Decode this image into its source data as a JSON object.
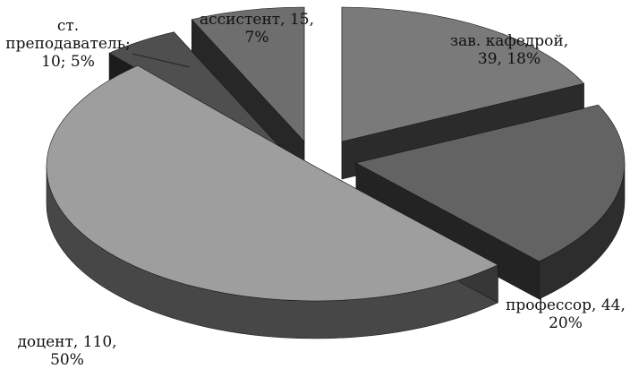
{
  "chart_data": {
    "type": "pie",
    "style": "3d-exploded",
    "slices": [
      {
        "label": "зав. кафедрой",
        "value": 39,
        "percent": "18%",
        "color": "#7a7a7a",
        "text_line1": "зав. кафедрой,",
        "text_line2": "39, 18%"
      },
      {
        "label": "профессор",
        "value": 44,
        "percent": "20%",
        "color": "#636363",
        "text_line1": "профессор, 44,",
        "text_line2": "20%"
      },
      {
        "label": "доцент",
        "value": 110,
        "percent": "50%",
        "color": "#9e9e9e",
        "text_line1": "доцент, 110,",
        "text_line2": "50%"
      },
      {
        "label": "ст. преподаватель",
        "value": 10,
        "percent": "5%",
        "color": "#4f4f4f",
        "text_line1": "ст.",
        "text_line2": "преподаватель;",
        "text_line3": "10; 5%"
      },
      {
        "label": "ассистент",
        "value": 15,
        "percent": "7%",
        "color": "#6e6e6e",
        "text_line1": "ассистент, 15,",
        "text_line2": "7%"
      }
    ]
  }
}
